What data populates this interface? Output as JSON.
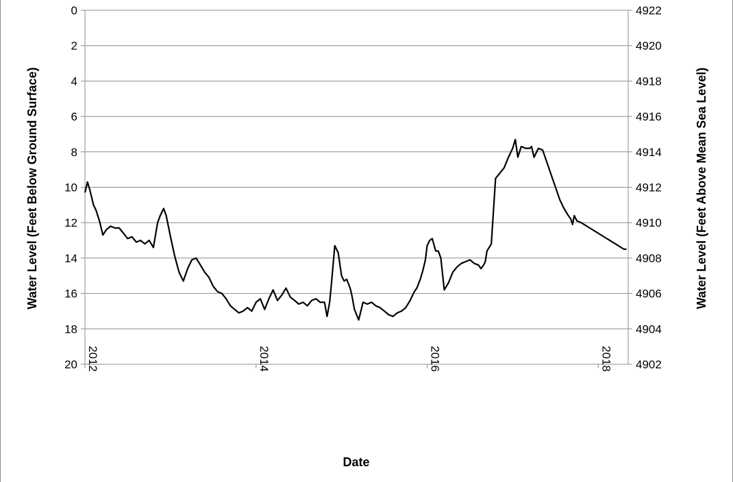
{
  "chart_data": {
    "type": "line",
    "title": "",
    "xlabel": "Date",
    "ylabel_left": "Water Level (Feet Below Ground Surface)",
    "ylabel_right": "Water Level (Feet Above Mean Sea Level)",
    "x_axis": {
      "min": 2012.0,
      "max": 2018.35,
      "ticks": [
        2012,
        2014,
        2016,
        2018
      ],
      "tick_labels": [
        "2012",
        "2014",
        "2016",
        "2018"
      ]
    },
    "y_left": {
      "min": 0,
      "max": 20,
      "inverted": true,
      "ticks": [
        0,
        2,
        4,
        6,
        8,
        10,
        12,
        14,
        16,
        18,
        20
      ],
      "tick_labels": [
        "0",
        "2",
        "4",
        "6",
        "8",
        "10",
        "12",
        "14",
        "16",
        "18",
        "20"
      ]
    },
    "y_right": {
      "min": 4902,
      "max": 4922,
      "ticks": [
        4922,
        4920,
        4918,
        4916,
        4914,
        4912,
        4910,
        4908,
        4906,
        4904,
        4902
      ],
      "tick_labels": [
        "4922",
        "4920",
        "4918",
        "4916",
        "4914",
        "4912",
        "4910",
        "4908",
        "4906",
        "4904",
        "4902"
      ]
    },
    "grid": "horizontal",
    "legend": "none",
    "line_color": "#000000",
    "series": [
      {
        "x": [
          2012.0,
          2012.03,
          2012.06,
          2012.1,
          2012.13,
          2012.17,
          2012.21,
          2012.25,
          2012.3,
          2012.35,
          2012.4,
          2012.45,
          2012.5,
          2012.55,
          2012.6,
          2012.65,
          2012.7,
          2012.75,
          2012.8,
          2012.85,
          2012.88,
          2012.92,
          2012.95,
          2013.0,
          2013.05,
          2013.1,
          2013.15,
          2013.2,
          2013.25,
          2013.3,
          2013.35,
          2013.4,
          2013.45,
          2013.5,
          2013.55,
          2013.6,
          2013.65,
          2013.7,
          2013.75,
          2013.8,
          2013.85,
          2013.9,
          2013.95,
          2014.0,
          2014.05,
          2014.1,
          2014.15,
          2014.2,
          2014.25,
          2014.3,
          2014.35,
          2014.4,
          2014.45,
          2014.5,
          2014.55,
          2014.6,
          2014.65,
          2014.7,
          2014.75,
          2014.8,
          2014.83,
          2014.86,
          2014.88,
          2014.92,
          2014.96,
          2015.0,
          2015.03,
          2015.06,
          2015.1,
          2015.12,
          2015.15,
          2015.2,
          2015.25,
          2015.3,
          2015.35,
          2015.4,
          2015.45,
          2015.5,
          2015.55,
          2015.6,
          2015.65,
          2015.7,
          2015.75,
          2015.8,
          2015.85,
          2015.88,
          2015.92,
          2015.95,
          2015.98,
          2016.0,
          2016.03,
          2016.06,
          2016.1,
          2016.13,
          2016.16,
          2016.2,
          2016.25,
          2016.3,
          2016.35,
          2016.4,
          2016.45,
          2016.5,
          2016.55,
          2016.6,
          2016.63,
          2016.66,
          2016.68,
          2016.7,
          2016.75,
          2016.8,
          2016.85,
          2016.9,
          2016.95,
          2017.0,
          2017.03,
          2017.06,
          2017.1,
          2017.15,
          2017.2,
          2017.22,
          2017.25,
          2017.3,
          2017.35,
          2017.4,
          2017.45,
          2017.5,
          2017.55,
          2017.6,
          2017.65,
          2017.68,
          2017.7,
          2017.72,
          2017.75,
          2017.8,
          2017.9,
          2018.0,
          2018.1,
          2018.2,
          2018.3,
          2018.33
        ],
        "y": [
          10.3,
          9.7,
          10.2,
          11.0,
          11.3,
          11.9,
          12.7,
          12.4,
          12.2,
          12.3,
          12.3,
          12.6,
          12.9,
          12.8,
          13.1,
          13.0,
          13.2,
          13.0,
          13.4,
          12.0,
          11.6,
          11.2,
          11.6,
          12.8,
          13.9,
          14.8,
          15.3,
          14.6,
          14.1,
          14.0,
          14.4,
          14.8,
          15.1,
          15.6,
          15.9,
          16.0,
          16.3,
          16.7,
          16.9,
          17.1,
          17.0,
          16.8,
          17.0,
          16.5,
          16.3,
          16.9,
          16.3,
          15.8,
          16.4,
          16.1,
          15.7,
          16.2,
          16.4,
          16.6,
          16.5,
          16.7,
          16.4,
          16.3,
          16.5,
          16.5,
          17.3,
          16.5,
          15.5,
          13.3,
          13.7,
          15.0,
          15.3,
          15.2,
          15.7,
          16.1,
          16.9,
          17.5,
          16.5,
          16.6,
          16.5,
          16.7,
          16.8,
          17.0,
          17.2,
          17.3,
          17.1,
          17.0,
          16.8,
          16.4,
          15.9,
          15.7,
          15.2,
          14.7,
          14.1,
          13.3,
          13.0,
          12.9,
          13.6,
          13.6,
          14.0,
          15.8,
          15.4,
          14.8,
          14.5,
          14.3,
          14.2,
          14.1,
          14.3,
          14.4,
          14.6,
          14.4,
          14.2,
          13.6,
          13.2,
          9.5,
          9.2,
          8.9,
          8.3,
          7.8,
          7.3,
          8.3,
          7.7,
          7.8,
          7.8,
          7.7,
          8.3,
          7.8,
          7.9,
          8.6,
          9.3,
          10.0,
          10.7,
          11.2,
          11.6,
          11.8,
          12.1,
          11.6,
          11.9,
          12.0,
          12.3,
          12.6,
          12.9,
          13.2,
          13.5,
          13.5
        ]
      }
    ]
  }
}
